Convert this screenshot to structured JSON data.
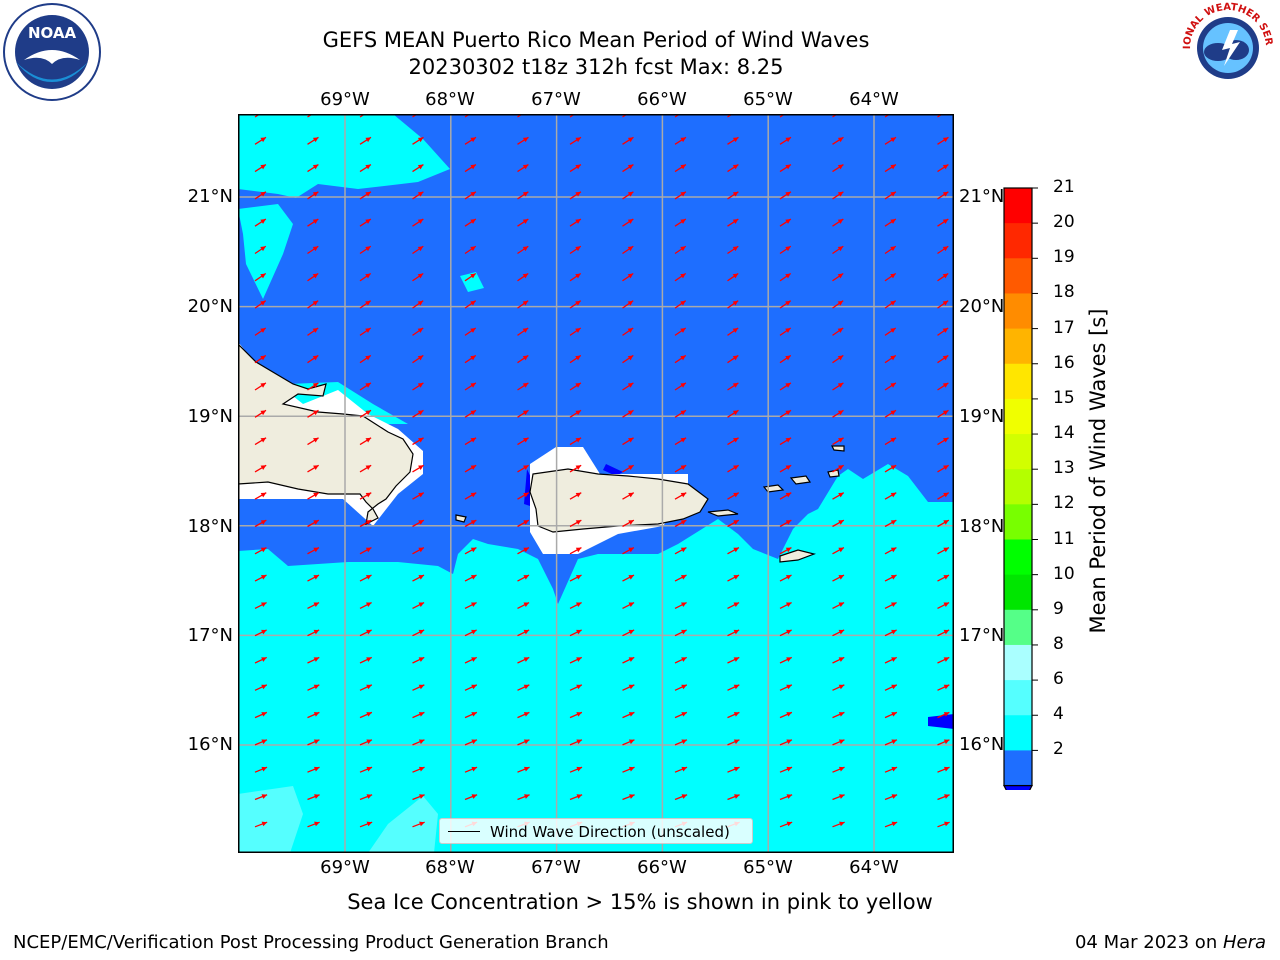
{
  "title": {
    "line1": "GEFS MEAN Puerto Rico Mean Period of Wind Waves",
    "line2": "20230302 t18z 312h fcst   Max: 8.25"
  },
  "logos": {
    "left": "noaa-logo",
    "right": "national-weather-service-logo",
    "left_text": "NOAA",
    "right_text": "NATIONAL WEATHER SERVICE"
  },
  "axes": {
    "lon_labels": [
      "69°W",
      "68°W",
      "67°W",
      "66°W",
      "65°W",
      "64°W"
    ],
    "lat_labels": [
      "21°N",
      "20°N",
      "19°N",
      "18°N",
      "17°N",
      "16°N"
    ]
  },
  "map": {
    "ocean_color_low": "#1e6eff",
    "ocean_color_mid": "#00ffff",
    "ocean_color_mid2": "#55ffff",
    "land_color": "#efedde",
    "missing_color": "#ffffff",
    "arrow_color": "#ff0000",
    "grid_color": "#aaaaaa"
  },
  "legend": {
    "label": "Wind Wave Direction (unscaled)"
  },
  "colorbar": {
    "label": "Mean Period of Wind Waves [s]",
    "ticks": [
      "21",
      "20",
      "19",
      "18",
      "17",
      "16",
      "15",
      "14",
      "13",
      "12",
      "11",
      "10",
      "9",
      "8",
      "6",
      "4",
      "2"
    ],
    "colors": [
      "#ff0000",
      "#ff2800",
      "#ff5a00",
      "#ff8c00",
      "#ffb400",
      "#ffe600",
      "#f0ff00",
      "#d2ff00",
      "#b4ff00",
      "#78ff00",
      "#00ff00",
      "#00e600",
      "#55ff88",
      "#aaffff",
      "#55ffff",
      "#00ffff",
      "#1e6eff",
      "#0000ff"
    ]
  },
  "footnote": "Sea Ice Concentration > 15% is shown in pink to yellow",
  "credit": {
    "left": "NCEP/EMC/Verification Post Processing Product Generation Branch",
    "right_prefix": "04 Mar 2023 on ",
    "right_host": "Hera"
  }
}
